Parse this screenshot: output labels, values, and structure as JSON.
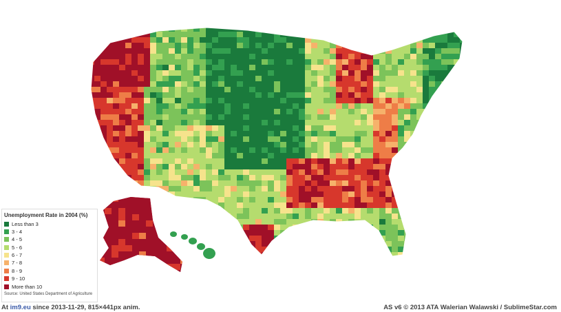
{
  "legend": {
    "title": "Unemployment Rate in 2004 (%)",
    "items": [
      {
        "label": "Less than 3",
        "color": "#1a7a3c"
      },
      {
        "label": "3 - 4",
        "color": "#33a050"
      },
      {
        "label": "4 - 5",
        "color": "#7cc35a"
      },
      {
        "label": "5 - 6",
        "color": "#b5dc6e"
      },
      {
        "label": "6 - 7",
        "color": "#f6e38c"
      },
      {
        "label": "7 - 8",
        "color": "#f6b26b"
      },
      {
        "label": "8 - 9",
        "color": "#ee7d47"
      },
      {
        "label": "9 - 10",
        "color": "#d7372c"
      },
      {
        "label": "More than 10",
        "color": "#a01028"
      }
    ],
    "source": "Source: United States Department of Agriculture"
  },
  "footer": {
    "prefix": "At",
    "site": "im9.eu",
    "since": "since 2013-11-29, 815×441px anim.",
    "credit": "AS v6 © 2013 ATA Walerian Walawski / SublimeStar.com"
  },
  "map": {
    "regions": [
      "contiguous-us",
      "alaska",
      "hawaii"
    ],
    "region_levels": {
      "pacific-northwest": "More than 10",
      "california": "9 - 10",
      "great-basin": "4 - 5",
      "southwest": "5 - 6",
      "great-plains": "Less than 3",
      "midwest": "5 - 6",
      "michigan": "9 - 10",
      "appalachia": "8 - 9",
      "deep-south": "9 - 10",
      "southeast-coast": "4 - 5",
      "northeast": "3 - 4",
      "texas": "5 - 6",
      "rio-grande": "More than 10",
      "florida": "4 - 5",
      "alaska": "More than 10",
      "hawaii": "3 - 4"
    }
  }
}
